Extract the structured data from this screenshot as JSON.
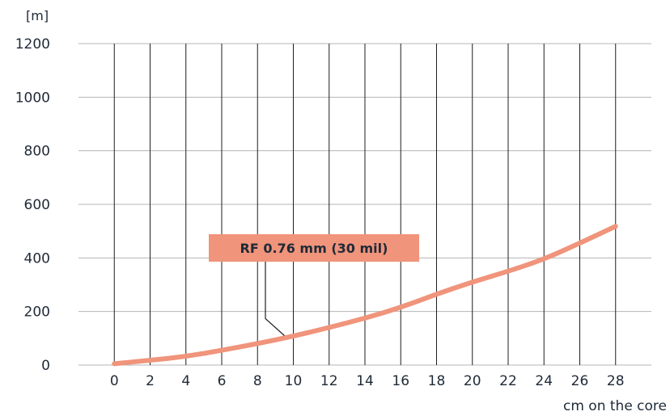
{
  "chart_data": {
    "type": "line",
    "title": "",
    "xlabel": "cm on the core",
    "ylabel": "[m]",
    "xlim": [
      -2,
      30
    ],
    "ylim": [
      0,
      1200
    ],
    "x_ticks": [
      "0",
      "2",
      "4",
      "6",
      "8",
      "10",
      "12",
      "14",
      "16",
      "18",
      "20",
      "22",
      "24",
      "26",
      "28"
    ],
    "y_ticks": [
      "0",
      "200",
      "400",
      "600",
      "800",
      "1000",
      "1200"
    ],
    "grid": {
      "vertical": true,
      "horizontal": true
    },
    "series": [
      {
        "name": "RF 0.76 mm (30 mil)",
        "color": "#f0947b",
        "x": [
          0,
          2,
          4,
          6,
          8,
          10,
          12,
          14,
          16,
          18,
          20,
          22,
          24,
          26,
          28
        ],
        "y": [
          5,
          18,
          32,
          55,
          80,
          108,
          140,
          175,
          215,
          265,
          310,
          350,
          395,
          455,
          518
        ]
      }
    ],
    "annotation": {
      "text": "RF 0.76 mm (30 mil)",
      "box_color": "#f0947b",
      "points_to_x": 9.5
    }
  }
}
